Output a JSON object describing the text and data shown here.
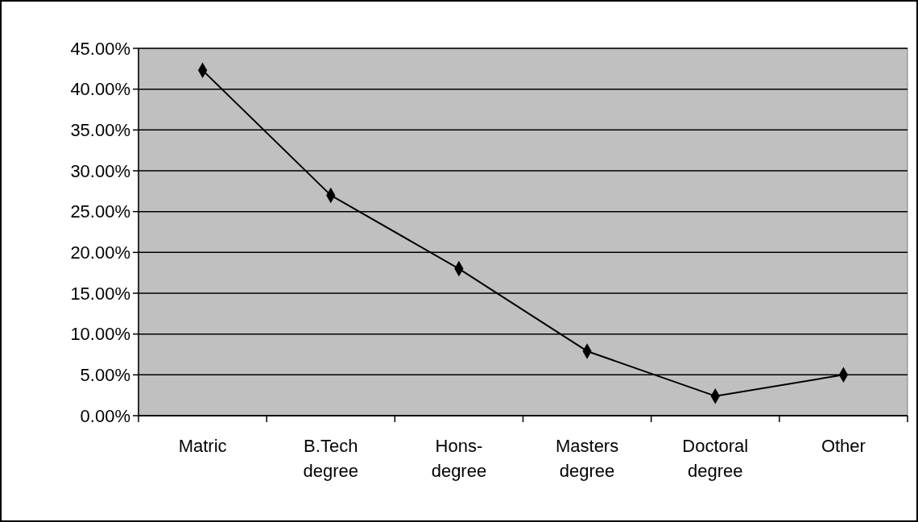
{
  "chart_data": {
    "type": "line",
    "categories": [
      "Matric",
      "B.Tech degree",
      "Hons-degree",
      "Masters degree",
      "Doctoral degree",
      "Other"
    ],
    "series": [
      {
        "color": "#000000",
        "values": [
          42.3,
          27.0,
          18.0,
          7.9,
          2.4,
          5.0
        ]
      }
    ],
    "ylim": [
      0,
      45
    ],
    "yticks": [
      {
        "value": 0,
        "label": "0.00%"
      },
      {
        "value": 5,
        "label": "5.00%"
      },
      {
        "value": 10,
        "label": "10.00%"
      },
      {
        "value": 15,
        "label": "15.00%"
      },
      {
        "value": 20,
        "label": "20.00%"
      },
      {
        "value": 25,
        "label": "25.00%"
      },
      {
        "value": 30,
        "label": "30.00%"
      },
      {
        "value": 35,
        "label": "35.00%"
      },
      {
        "value": 40,
        "label": "40.00%"
      },
      {
        "value": 45,
        "label": "45.00%"
      }
    ],
    "grid": "y",
    "marker": "diamond",
    "line_style": "solid"
  }
}
